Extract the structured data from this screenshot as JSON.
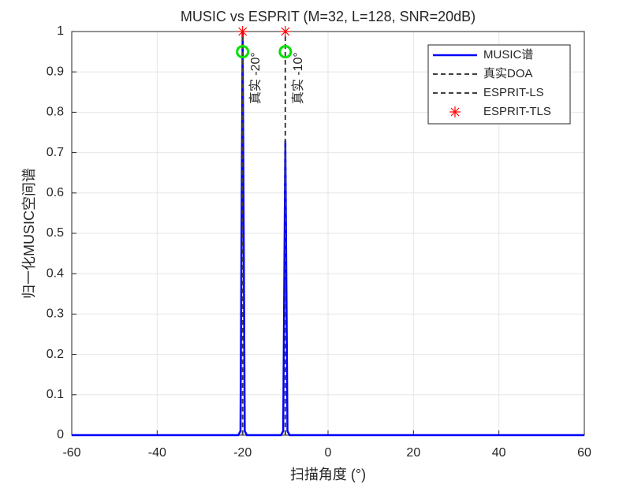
{
  "chart_data": {
    "type": "line",
    "title": "MUSIC vs ESPRIT (M=32, L=128, SNR=20dB)",
    "x_label": "扫描角度 (°)",
    "y_label": "归一化MUSIC空间谱",
    "xlim": [
      -60,
      60
    ],
    "xticks": [
      -60,
      -40,
      -20,
      0,
      20,
      40,
      60
    ],
    "ylim": [
      0,
      1
    ],
    "yticks": [
      0,
      0.1,
      0.2,
      0.3,
      0.4,
      0.5,
      0.6,
      0.7,
      0.8,
      0.9,
      1
    ],
    "grid": true,
    "legend": "top-right",
    "series": [
      {
        "name": "MUSIC谱",
        "color": "#0000ff",
        "style": "line",
        "x": [
          -60,
          -21,
          -20.5,
          -20,
          -19.5,
          -19,
          -11,
          -10.5,
          -10,
          -9.5,
          -9,
          60
        ],
        "values": [
          0,
          0,
          0.01,
          1,
          0.01,
          0,
          0,
          0.01,
          0.73,
          0.01,
          0,
          0
        ]
      },
      {
        "name": "真实DOA",
        "color": "#404040",
        "style": "vline",
        "x": [
          -20,
          -10
        ]
      },
      {
        "name": "ESPRIT-LS",
        "color": "#00e000",
        "style": "circle",
        "legend_style": "dashed",
        "legend_color": "#404040",
        "x": [
          -20,
          -10
        ],
        "values": [
          0.95,
          0.95
        ]
      },
      {
        "name": "ESPRIT-TLS",
        "color": "#ff0000",
        "style": "star",
        "x": [
          -20,
          -10
        ],
        "values": [
          1,
          1
        ]
      }
    ],
    "annotations": [
      {
        "text": "真实 -20°",
        "x": -20
      },
      {
        "text": "真实 -10°",
        "x": -10
      }
    ]
  }
}
